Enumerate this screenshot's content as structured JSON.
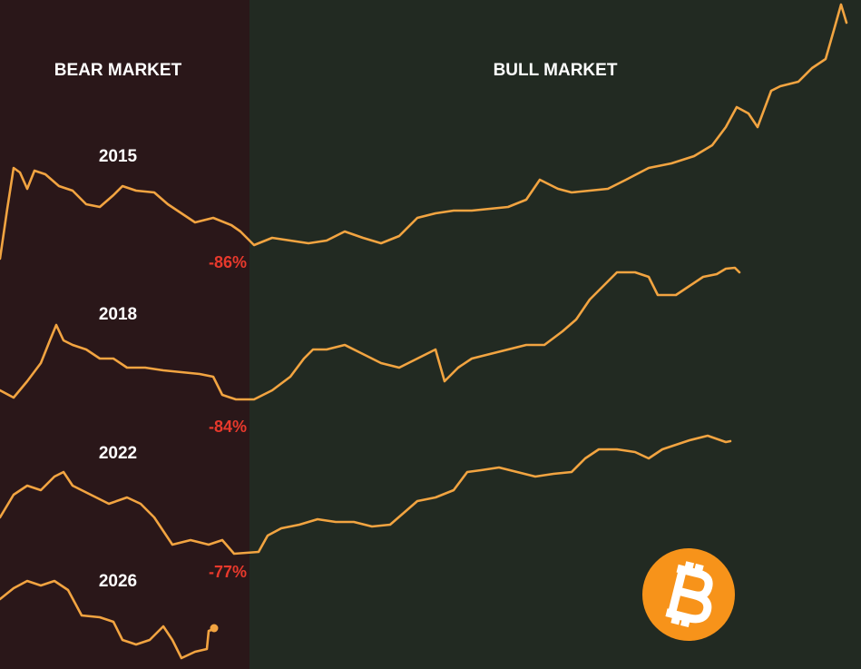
{
  "sections": {
    "bear": "BEAR MARKET",
    "bull": "BULL MARKET"
  },
  "cycles": [
    {
      "year": "2015",
      "drawdown": "-86%"
    },
    {
      "year": "2018",
      "drawdown": "-84%"
    },
    {
      "year": "2022",
      "drawdown": "-77%"
    },
    {
      "year": "2026"
    }
  ]
}
